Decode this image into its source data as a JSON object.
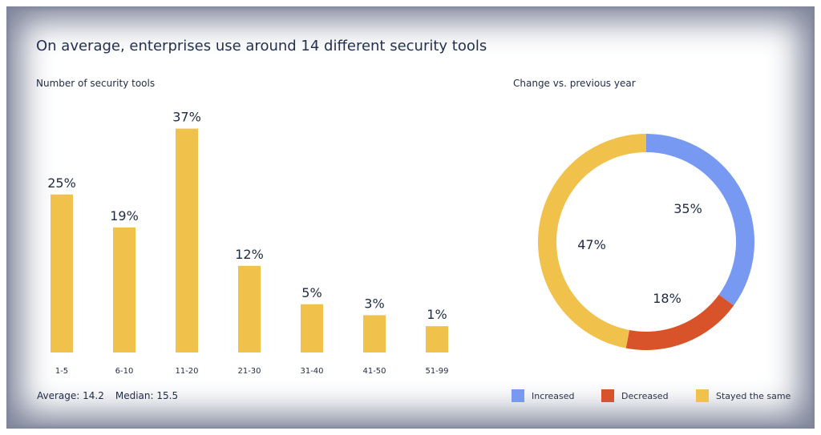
{
  "chart_data": [
    {
      "type": "bar",
      "title": "On average, enterprises use around 14 different security tools",
      "subtitle": "Number of security tools",
      "categories": [
        "1-5",
        "6-10",
        "11-20",
        "21-30",
        "31-40",
        "41-50",
        "51-99"
      ],
      "values": [
        25,
        19,
        37,
        12,
        5,
        3,
        1
      ],
      "data_labels": [
        "25%",
        "19%",
        "37%",
        "12%",
        "5%",
        "3%",
        "1%"
      ],
      "color": "#f0c14b",
      "stats": {
        "average": "Average: 14.2",
        "median": "Median: 15.5"
      }
    },
    {
      "type": "pie",
      "subtitle": "Change vs. previous year",
      "categories": [
        "Increased",
        "Decreased",
        "Stayed the same"
      ],
      "values": [
        35,
        18,
        47
      ],
      "data_labels": [
        "35%",
        "18%",
        "47%"
      ],
      "colors": [
        "#7899f1",
        "#d8532a",
        "#f0c14b"
      ],
      "donut": true,
      "legend": "bottom"
    }
  ]
}
